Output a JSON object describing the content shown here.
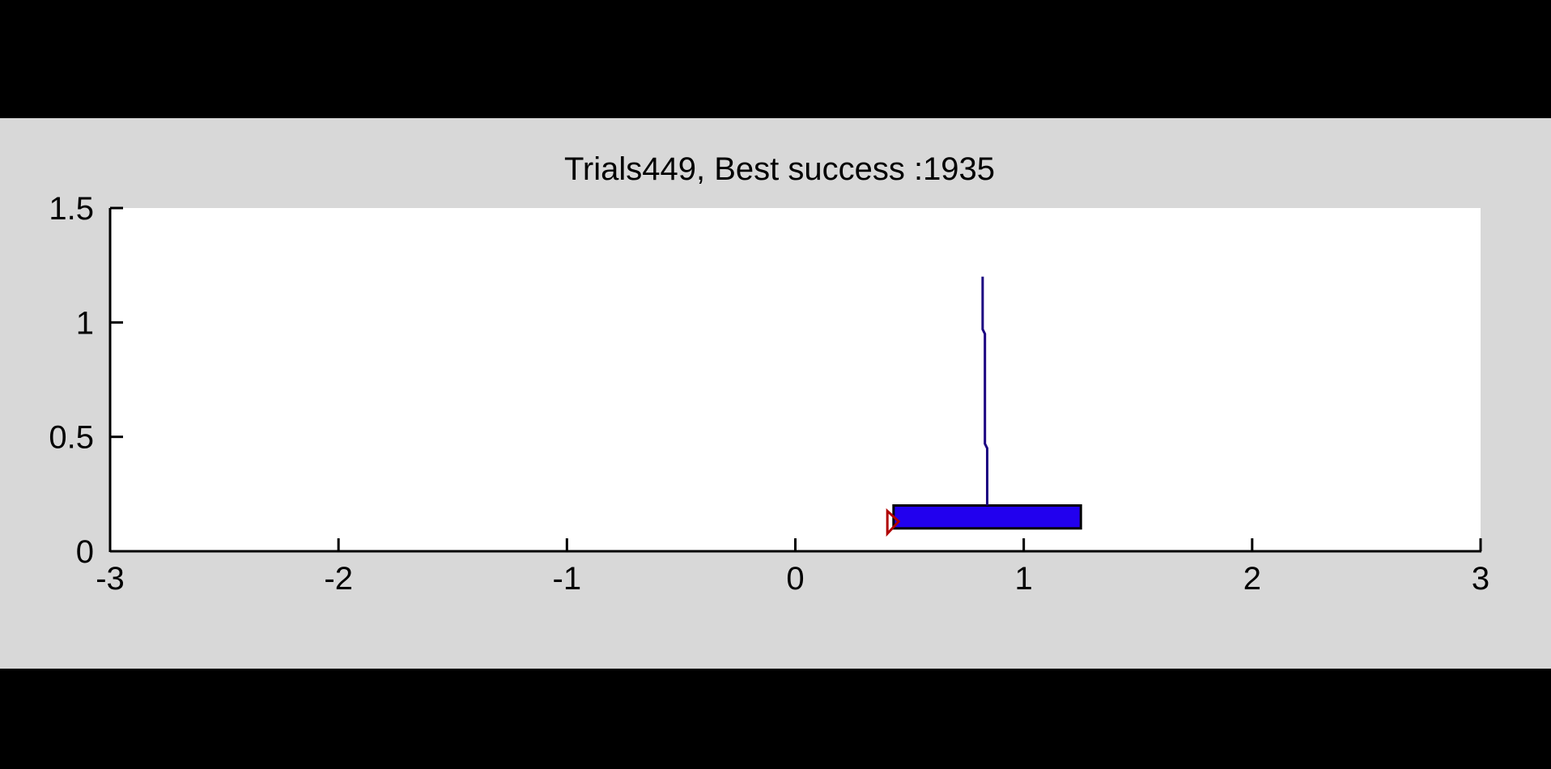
{
  "figure": {
    "title": "Trials449, Best success :1935",
    "background_color": "#d8d8d8",
    "axes_background_color": "#ffffff"
  },
  "chart_data": {
    "type": "line",
    "title": "Trials449, Best success :1935",
    "xlabel": "",
    "ylabel": "",
    "xlim": [
      -3,
      3
    ],
    "ylim": [
      0,
      1.5
    ],
    "x_ticks": [
      "-3",
      "-2",
      "-1",
      "0",
      "1",
      "2",
      "3"
    ],
    "x_tick_values": [
      -3,
      -2,
      -1,
      0,
      1,
      2,
      3
    ],
    "y_ticks": [
      "0",
      "0.5",
      "1",
      "1.5"
    ],
    "y_tick_values": [
      0,
      0.5,
      1,
      1.5
    ],
    "grid": false,
    "cart": {
      "x_left": 0.43,
      "x_right": 1.25,
      "y_bottom": 0.1,
      "y_top": 0.2,
      "color": "#2200ee"
    },
    "pole": {
      "x": [
        0.84,
        0.84,
        0.83,
        0.83,
        0.82,
        0.82
      ],
      "y": [
        0.2,
        0.45,
        0.47,
        0.95,
        0.97,
        1.2
      ],
      "color": "#1a0080"
    },
    "marker": {
      "x": 0.41,
      "y": 0.13,
      "color": "#b00000"
    }
  }
}
